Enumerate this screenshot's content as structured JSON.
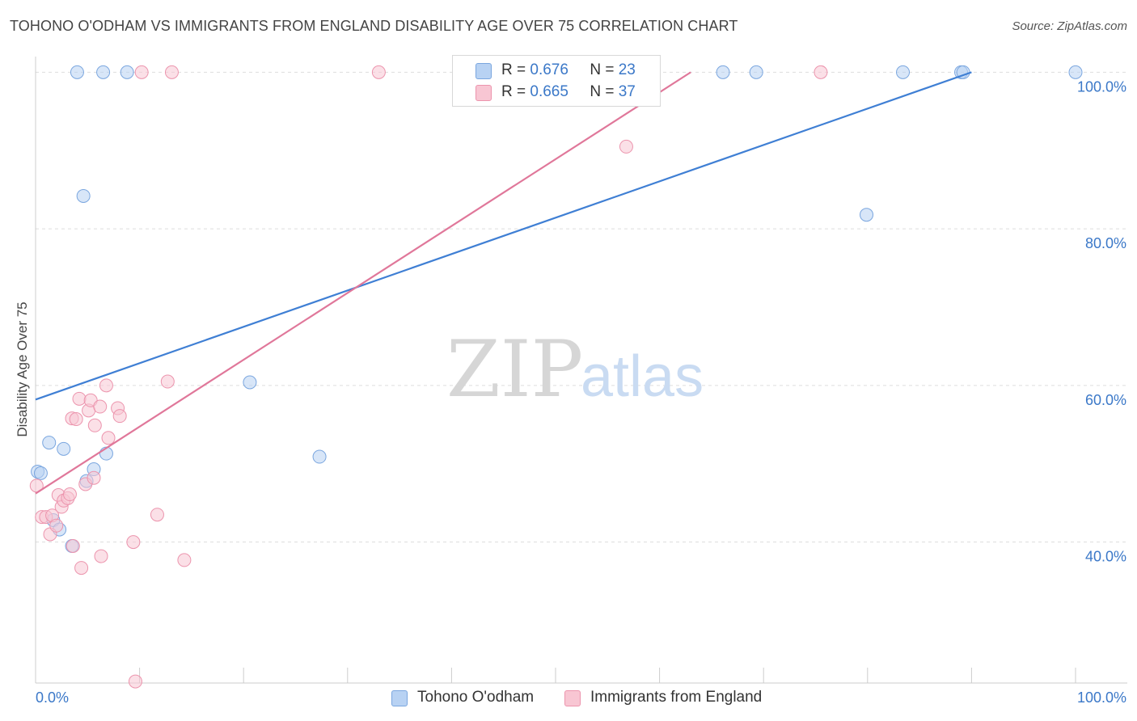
{
  "header": {
    "title": "TOHONO O'ODHAM VS IMMIGRANTS FROM ENGLAND DISABILITY AGE OVER 75 CORRELATION CHART",
    "source": "Source: ZipAtlas.com"
  },
  "watermark": {
    "zip": "ZIP",
    "atlas": "atlas"
  },
  "legend": {
    "series1": {
      "r_label": "R =",
      "r_value": "0.676",
      "n_label": "N =",
      "n_value": "23"
    },
    "series2": {
      "r_label": "R =",
      "r_value": "0.665",
      "n_label": "N =",
      "n_value": "37"
    }
  },
  "bottom_legend": {
    "series1": "Tohono O'odham",
    "series2": "Immigrants from England"
  },
  "colors": {
    "series1_fill": "#b8d2f3",
    "series1_stroke": "#7aa6df",
    "series1_line": "#3f7fd4",
    "series2_fill": "#f8c6d3",
    "series2_stroke": "#ec94ad",
    "series2_line": "#e0779a",
    "grid": "#dddddd",
    "axis": "#cccccc",
    "tick_text": "#3b78c8"
  },
  "chart_data": {
    "type": "scatter",
    "title": "TOHONO O'ODHAM VS IMMIGRANTS FROM ENGLAND DISABILITY AGE OVER 75 CORRELATION CHART",
    "xlabel": "",
    "ylabel": "Disability Age Over 75",
    "xlim": [
      0,
      100
    ],
    "ylim": [
      22,
      102
    ],
    "x_tick_labels": [
      "0.0%",
      "100.0%"
    ],
    "y_ticks": [
      40,
      60,
      80,
      100
    ],
    "y_tick_labels": [
      "40.0%",
      "60.0%",
      "80.0%",
      "100.0%"
    ],
    "grid": true,
    "legend_position": "top-center",
    "series": [
      {
        "name": "Tohono O'odham",
        "r": 0.676,
        "n": 23,
        "points": [
          [
            0.2,
            49.0
          ],
          [
            0.5,
            48.8
          ],
          [
            1.3,
            52.7
          ],
          [
            1.7,
            42.8
          ],
          [
            2.3,
            41.6
          ],
          [
            2.7,
            51.9
          ],
          [
            3.5,
            39.5
          ],
          [
            4.9,
            47.8
          ],
          [
            5.6,
            49.3
          ],
          [
            6.8,
            51.3
          ],
          [
            4.6,
            84.2
          ],
          [
            4.0,
            100
          ],
          [
            6.5,
            100
          ],
          [
            8.8,
            100
          ],
          [
            20.6,
            60.4
          ],
          [
            27.3,
            50.9
          ],
          [
            66.1,
            100
          ],
          [
            69.3,
            100
          ],
          [
            79.9,
            81.8
          ],
          [
            83.4,
            100
          ],
          [
            89.0,
            100
          ],
          [
            89.2,
            100
          ],
          [
            100,
            100
          ]
        ],
        "trend_line": {
          "x": [
            0,
            90
          ],
          "y": [
            58.2,
            100
          ]
        }
      },
      {
        "name": "Immigrants from England",
        "r": 0.665,
        "n": 37,
        "points": [
          [
            0.1,
            47.2
          ],
          [
            0.6,
            43.2
          ],
          [
            1.0,
            43.2
          ],
          [
            1.4,
            41.0
          ],
          [
            1.6,
            43.4
          ],
          [
            2.0,
            42.1
          ],
          [
            2.2,
            46.0
          ],
          [
            2.5,
            44.5
          ],
          [
            2.7,
            45.3
          ],
          [
            3.1,
            45.6
          ],
          [
            3.3,
            46.1
          ],
          [
            3.6,
            39.5
          ],
          [
            3.5,
            55.8
          ],
          [
            3.9,
            55.7
          ],
          [
            4.2,
            58.3
          ],
          [
            4.4,
            36.7
          ],
          [
            4.8,
            47.4
          ],
          [
            5.1,
            56.8
          ],
          [
            5.3,
            58.1
          ],
          [
            5.6,
            48.2
          ],
          [
            5.7,
            54.9
          ],
          [
            6.2,
            57.3
          ],
          [
            6.3,
            38.2
          ],
          [
            6.8,
            60.0
          ],
          [
            7.0,
            53.3
          ],
          [
            7.9,
            57.1
          ],
          [
            8.1,
            56.1
          ],
          [
            9.4,
            40.0
          ],
          [
            9.6,
            22.2
          ],
          [
            10.2,
            100
          ],
          [
            11.7,
            43.5
          ],
          [
            12.7,
            60.5
          ],
          [
            14.3,
            37.7
          ],
          [
            13.1,
            100
          ],
          [
            33.0,
            100
          ],
          [
            56.8,
            90.5
          ],
          [
            75.5,
            100
          ]
        ],
        "trend_line": {
          "x": [
            0,
            63
          ],
          "y": [
            46.2,
            100
          ]
        }
      }
    ]
  }
}
